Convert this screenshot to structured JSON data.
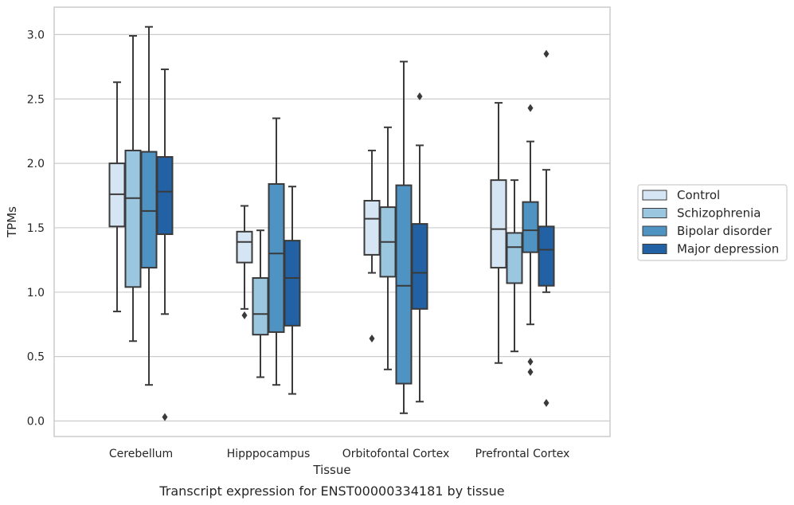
{
  "caption": "Transcript expression for ENST00000334181 by tissue",
  "colors": {
    "Control": "#d6e5f4",
    "Schizophrenia": "#9ac6df",
    "Bipolar disorder": "#4f93c3",
    "Major depression": "#2161a4",
    "line": "#3a3a3a",
    "grid": "#cccccc",
    "frame": "#cccccc"
  },
  "chart_data": {
    "type": "box",
    "xlabel": "Tissue",
    "ylabel": "TPMs",
    "ylim": [
      -0.12,
      3.22
    ],
    "yticks": [
      "0.0",
      "0.5",
      "1.0",
      "1.5",
      "2.0",
      "2.5",
      "3.0"
    ],
    "grid": "horizontal",
    "legend_position": "right",
    "categories": [
      "Cerebellum",
      "Hipppocampus",
      "Orbitofontal Cortex",
      "Prefrontal Cortex"
    ],
    "series": [
      {
        "name": "Control",
        "boxes": [
          {
            "q1": 1.51,
            "median": 1.76,
            "q3": 2.0,
            "whislo": 0.85,
            "whishi": 2.63,
            "fliers": []
          },
          {
            "q1": 1.23,
            "median": 1.39,
            "q3": 1.47,
            "whislo": 0.87,
            "whishi": 1.67,
            "fliers": [
              0.82
            ]
          },
          {
            "q1": 1.29,
            "median": 1.57,
            "q3": 1.71,
            "whislo": 1.15,
            "whishi": 2.1,
            "fliers": [
              0.64
            ]
          },
          {
            "q1": 1.19,
            "median": 1.49,
            "q3": 1.87,
            "whislo": 0.45,
            "whishi": 2.47,
            "fliers": []
          }
        ]
      },
      {
        "name": "Schizophrenia",
        "boxes": [
          {
            "q1": 1.04,
            "median": 1.73,
            "q3": 2.1,
            "whislo": 0.62,
            "whishi": 2.99,
            "fliers": []
          },
          {
            "q1": 0.67,
            "median": 0.83,
            "q3": 1.11,
            "whislo": 0.34,
            "whishi": 1.48,
            "fliers": []
          },
          {
            "q1": 1.12,
            "median": 1.39,
            "q3": 1.66,
            "whislo": 0.4,
            "whishi": 2.28,
            "fliers": []
          },
          {
            "q1": 1.07,
            "median": 1.35,
            "q3": 1.46,
            "whislo": 0.54,
            "whishi": 1.87,
            "fliers": []
          }
        ]
      },
      {
        "name": "Bipolar disorder",
        "boxes": [
          {
            "q1": 1.19,
            "median": 1.63,
            "q3": 2.09,
            "whislo": 0.28,
            "whishi": 3.06,
            "fliers": []
          },
          {
            "q1": 0.69,
            "median": 1.3,
            "q3": 1.84,
            "whislo": 0.28,
            "whishi": 2.35,
            "fliers": []
          },
          {
            "q1": 0.29,
            "median": 1.05,
            "q3": 1.83,
            "whislo": 0.06,
            "whishi": 2.79,
            "fliers": []
          },
          {
            "q1": 1.31,
            "median": 1.48,
            "q3": 1.7,
            "whislo": 0.75,
            "whishi": 2.17,
            "fliers": [
              2.43,
              0.46,
              0.38
            ]
          }
        ]
      },
      {
        "name": "Major depression",
        "boxes": [
          {
            "q1": 1.45,
            "median": 1.78,
            "q3": 2.05,
            "whislo": 0.83,
            "whishi": 2.73,
            "fliers": [
              0.03
            ]
          },
          {
            "q1": 0.74,
            "median": 1.11,
            "q3": 1.4,
            "whislo": 0.21,
            "whishi": 1.82,
            "fliers": []
          },
          {
            "q1": 0.87,
            "median": 1.15,
            "q3": 1.53,
            "whislo": 0.15,
            "whishi": 2.14,
            "fliers": [
              2.52
            ]
          },
          {
            "q1": 1.05,
            "median": 1.33,
            "q3": 1.51,
            "whislo": 1.0,
            "whishi": 1.95,
            "fliers": [
              2.85,
              0.14
            ]
          }
        ]
      }
    ]
  }
}
